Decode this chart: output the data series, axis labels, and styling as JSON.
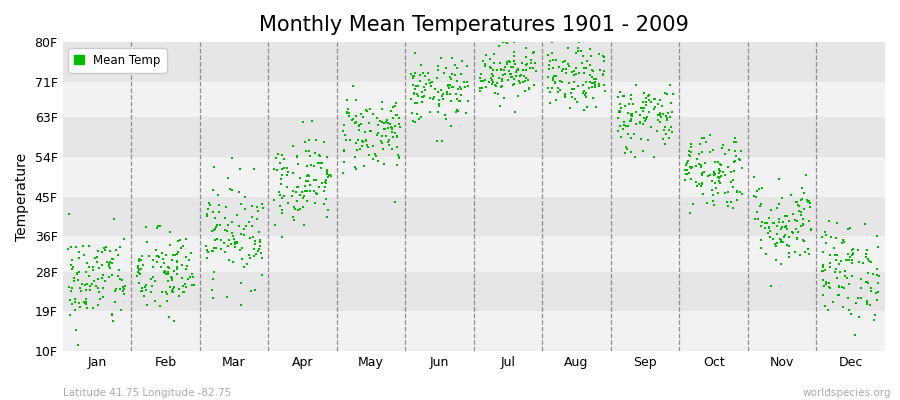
{
  "title": "Monthly Mean Temperatures 1901 - 2009",
  "ylabel": "Temperature",
  "subtitle_left": "Latitude 41.75 Longitude -82.75",
  "subtitle_right": "worldspecies.org",
  "ytick_labels": [
    "10F",
    "19F",
    "28F",
    "36F",
    "45F",
    "54F",
    "63F",
    "71F",
    "80F"
  ],
  "ytick_values": [
    10,
    19,
    28,
    36,
    45,
    54,
    63,
    71,
    80
  ],
  "ylim": [
    10,
    80
  ],
  "months": [
    "Jan",
    "Feb",
    "Mar",
    "Apr",
    "May",
    "Jun",
    "Jul",
    "Aug",
    "Sep",
    "Oct",
    "Nov",
    "Dec"
  ],
  "month_means": [
    26.0,
    27.5,
    37.0,
    49.0,
    59.5,
    68.5,
    73.5,
    71.5,
    63.0,
    51.0,
    39.0,
    28.0
  ],
  "month_stds": [
    5.5,
    5.0,
    6.0,
    5.0,
    4.5,
    3.8,
    3.2,
    3.5,
    4.0,
    4.5,
    5.0,
    5.5
  ],
  "n_years": 109,
  "dot_color": "#00bb00",
  "dot_size": 3,
  "bg_color_light": "#f2f2f2",
  "bg_color_dark": "#e6e6e6",
  "grid_color": "#666666",
  "legend_marker_color": "#00bb00",
  "title_fontsize": 15,
  "axis_label_fontsize": 10,
  "tick_fontsize": 9,
  "bg_base": "#f8f8f8"
}
